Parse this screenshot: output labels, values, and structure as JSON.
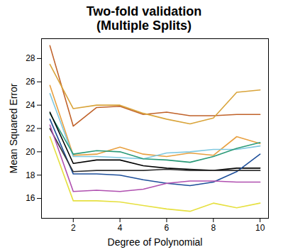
{
  "chart_data": {
    "type": "line",
    "title": "Two-fold validation",
    "subtitle": "(Multiple Splits)",
    "x_label": "Degree of Polynomial",
    "y_label": "Mean Squared Error",
    "x": [
      1,
      2,
      3,
      4,
      5,
      6,
      7,
      8,
      9,
      10
    ],
    "xlim": [
      0.64,
      10.36
    ],
    "xticks": [
      2,
      4,
      6,
      8,
      10
    ],
    "ylim": [
      14.3,
      29.7
    ],
    "yticks": [
      16,
      18,
      20,
      22,
      24,
      26,
      28
    ],
    "grid": false,
    "series": [
      {
        "color": "#c0622a",
        "values": [
          29.1,
          22.2,
          23.8,
          23.9,
          23.2,
          23.4,
          23.1,
          23.1,
          23.2,
          23.2
        ]
      },
      {
        "color": "#d9a43a",
        "values": [
          27.5,
          23.7,
          24.0,
          24.0,
          23.3,
          22.8,
          22.4,
          22.9,
          25.1,
          25.3
        ]
      },
      {
        "color": "#e8a040",
        "values": [
          25.7,
          19.7,
          19.8,
          20.4,
          19.8,
          19.6,
          19.9,
          19.7,
          21.3,
          20.7
        ]
      },
      {
        "color": "#7fc8e0",
        "values": [
          25.0,
          19.6,
          19.6,
          19.5,
          19.4,
          19.9,
          20.0,
          20.2,
          20.2,
          20.5
        ]
      },
      {
        "color": "#2a9a78",
        "values": [
          23.3,
          19.8,
          20.1,
          20.0,
          19.4,
          19.3,
          19.1,
          19.6,
          20.3,
          20.8
        ]
      },
      {
        "color": "#000000",
        "values": [
          23.4,
          19.0,
          19.3,
          19.3,
          18.8,
          18.6,
          18.5,
          18.4,
          18.6,
          18.6
        ]
      },
      {
        "color": "#1e4f9a",
        "values": [
          22.8,
          18.1,
          18.1,
          18.0,
          17.6,
          17.3,
          17.1,
          17.4,
          18.3,
          19.8
        ]
      },
      {
        "color": "#333333",
        "values": [
          22.0,
          18.3,
          18.4,
          18.4,
          18.4,
          18.5,
          18.4,
          18.4,
          18.4,
          18.4
        ]
      },
      {
        "color": "#b050b0",
        "values": [
          22.3,
          16.6,
          16.7,
          16.6,
          16.8,
          17.3,
          17.5,
          17.5,
          17.4,
          17.4
        ]
      },
      {
        "color": "#e6e040",
        "values": [
          21.3,
          15.8,
          15.8,
          15.7,
          15.4,
          15.1,
          14.9,
          15.6,
          15.2,
          15.6
        ]
      }
    ]
  }
}
